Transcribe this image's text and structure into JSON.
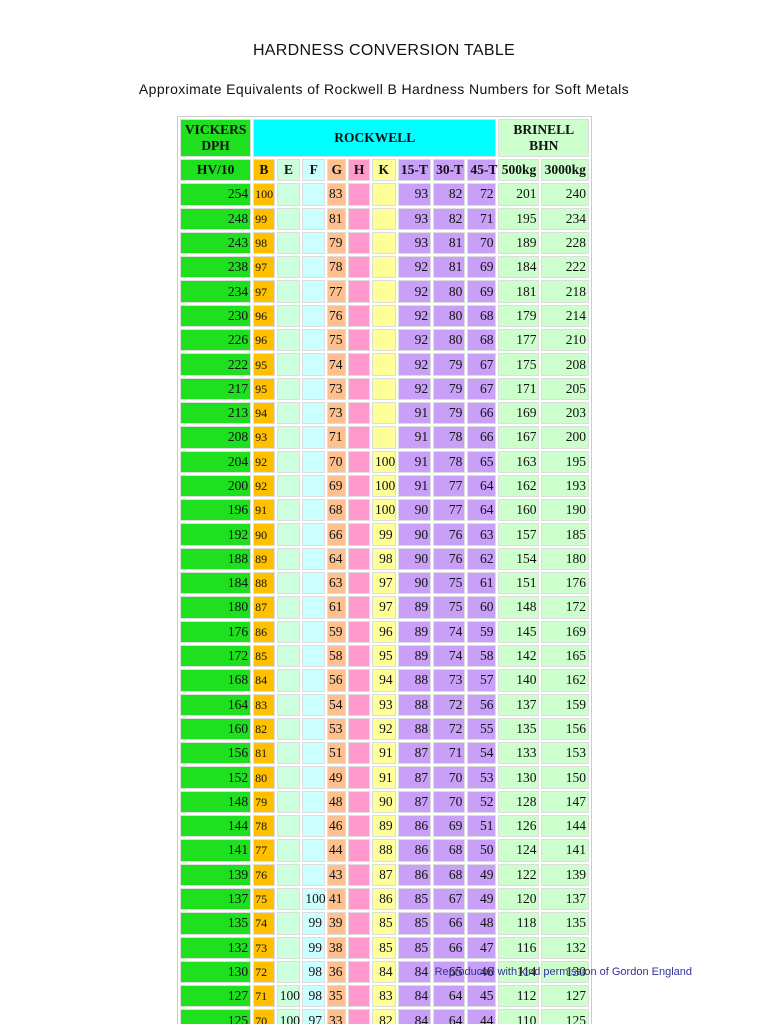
{
  "header": {
    "title": "HARDNESS CONVERSION TABLE",
    "subtitle": "Approximate Equivalents of Rockwell B Hardness Numbers for Soft Metals"
  },
  "table": {
    "group_headers": [
      "VICKERS DPH",
      "ROCKWELL",
      "BRINELL BHN"
    ],
    "columns": [
      "HV/10",
      "B",
      "E",
      "F",
      "G",
      "H",
      "K",
      "15-T",
      "30-T",
      "45-T",
      "500kg",
      "3000kg"
    ],
    "rows": [
      [
        254,
        100,
        null,
        null,
        83,
        null,
        null,
        93,
        82,
        72,
        201,
        240
      ],
      [
        248,
        99,
        null,
        null,
        81,
        null,
        null,
        93,
        82,
        71,
        195,
        234
      ],
      [
        243,
        98,
        null,
        null,
        79,
        null,
        null,
        93,
        81,
        70,
        189,
        228
      ],
      [
        238,
        97,
        null,
        null,
        78,
        null,
        null,
        92,
        81,
        69,
        184,
        222
      ],
      [
        234,
        97,
        null,
        null,
        77,
        null,
        null,
        92,
        80,
        69,
        181,
        218
      ],
      [
        230,
        96,
        null,
        null,
        76,
        null,
        null,
        92,
        80,
        68,
        179,
        214
      ],
      [
        226,
        96,
        null,
        null,
        75,
        null,
        null,
        92,
        80,
        68,
        177,
        210
      ],
      [
        222,
        95,
        null,
        null,
        74,
        null,
        null,
        92,
        79,
        67,
        175,
        208
      ],
      [
        217,
        95,
        null,
        null,
        73,
        null,
        null,
        92,
        79,
        67,
        171,
        205
      ],
      [
        213,
        94,
        null,
        null,
        73,
        null,
        null,
        91,
        79,
        66,
        169,
        203
      ],
      [
        208,
        93,
        null,
        null,
        71,
        null,
        null,
        91,
        78,
        66,
        167,
        200
      ],
      [
        204,
        92,
        null,
        null,
        70,
        null,
        100,
        91,
        78,
        65,
        163,
        195
      ],
      [
        200,
        92,
        null,
        null,
        69,
        null,
        100,
        91,
        77,
        64,
        162,
        193
      ],
      [
        196,
        91,
        null,
        null,
        68,
        null,
        100,
        90,
        77,
        64,
        160,
        190
      ],
      [
        192,
        90,
        null,
        null,
        66,
        null,
        99,
        90,
        76,
        63,
        157,
        185
      ],
      [
        188,
        89,
        null,
        null,
        64,
        null,
        98,
        90,
        76,
        62,
        154,
        180
      ],
      [
        184,
        88,
        null,
        null,
        63,
        null,
        97,
        90,
        75,
        61,
        151,
        176
      ],
      [
        180,
        87,
        null,
        null,
        61,
        null,
        97,
        89,
        75,
        60,
        148,
        172
      ],
      [
        176,
        86,
        null,
        null,
        59,
        null,
        96,
        89,
        74,
        59,
        145,
        169
      ],
      [
        172,
        85,
        null,
        null,
        58,
        null,
        95,
        89,
        74,
        58,
        142,
        165
      ],
      [
        168,
        84,
        null,
        null,
        56,
        null,
        94,
        88,
        73,
        57,
        140,
        162
      ],
      [
        164,
        83,
        null,
        null,
        54,
        null,
        93,
        88,
        72,
        56,
        137,
        159
      ],
      [
        160,
        82,
        null,
        null,
        53,
        null,
        92,
        88,
        72,
        55,
        135,
        156
      ],
      [
        156,
        81,
        null,
        null,
        51,
        null,
        91,
        87,
        71,
        54,
        133,
        153
      ],
      [
        152,
        80,
        null,
        null,
        49,
        null,
        91,
        87,
        70,
        53,
        130,
        150
      ],
      [
        148,
        79,
        null,
        null,
        48,
        null,
        90,
        87,
        70,
        52,
        128,
        147
      ],
      [
        144,
        78,
        null,
        null,
        46,
        null,
        89,
        86,
        69,
        51,
        126,
        144
      ],
      [
        141,
        77,
        null,
        null,
        44,
        null,
        88,
        86,
        68,
        50,
        124,
        141
      ],
      [
        139,
        76,
        null,
        null,
        43,
        null,
        87,
        86,
        68,
        49,
        122,
        139
      ],
      [
        137,
        75,
        null,
        100,
        41,
        null,
        86,
        85,
        67,
        49,
        120,
        137
      ],
      [
        135,
        74,
        null,
        99,
        39,
        null,
        85,
        85,
        66,
        48,
        118,
        135
      ],
      [
        132,
        73,
        null,
        99,
        38,
        null,
        85,
        85,
        66,
        47,
        116,
        132
      ],
      [
        130,
        72,
        null,
        98,
        36,
        null,
        84,
        84,
        65,
        46,
        114,
        130
      ],
      [
        127,
        71,
        100,
        98,
        35,
        null,
        83,
        84,
        64,
        45,
        112,
        127
      ],
      [
        125,
        70,
        100,
        97,
        33,
        null,
        82,
        84,
        64,
        44,
        110,
        125
      ]
    ]
  },
  "footer": {
    "credit": "Reproduced with kind permission of Gordon England"
  }
}
